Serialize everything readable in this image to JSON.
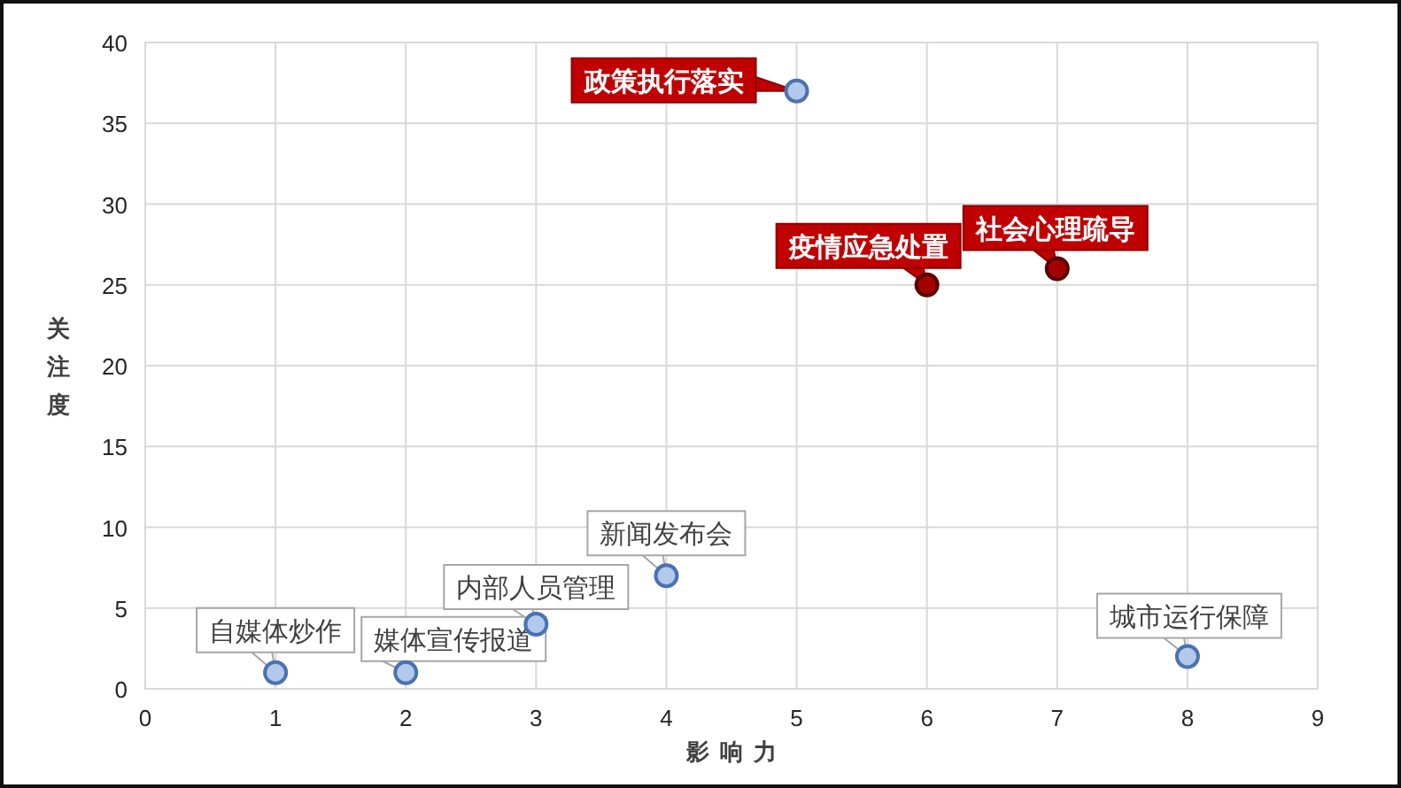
{
  "chart_data": {
    "type": "scatter",
    "xlabel": "影响力",
    "ylabel": "关注度",
    "xlim": [
      0,
      9
    ],
    "ylim": [
      0,
      40
    ],
    "xticks": [
      0,
      1,
      2,
      3,
      4,
      5,
      6,
      7,
      8,
      9
    ],
    "yticks": [
      0,
      5,
      10,
      15,
      20,
      25,
      30,
      35,
      40
    ],
    "grid": true,
    "marker": "circle",
    "series": [
      {
        "x": [
          1,
          2,
          3,
          4,
          8
        ],
        "values": [
          1,
          1,
          4,
          7,
          2
        ],
        "color": "#b3c9ec"
      },
      {
        "x": [
          5,
          6,
          7
        ],
        "values": [
          37,
          25,
          26
        ],
        "colors": [
          "#b3c9ec",
          "#a50000",
          "#a50000"
        ]
      }
    ],
    "annotations": [
      {
        "text": "自媒体炒作",
        "x": 1,
        "y": 1
      },
      {
        "text": "媒体宣传报道",
        "x": 2,
        "y": 1
      },
      {
        "text": "内部人员管理",
        "x": 3,
        "y": 4
      },
      {
        "text": "新闻发布会",
        "x": 4,
        "y": 7
      },
      {
        "text": "政策执行落实",
        "x": 5,
        "y": 37
      },
      {
        "text": "疫情应急处置",
        "x": 6,
        "y": 25
      },
      {
        "text": "社会心理疏导",
        "x": 7,
        "y": 26
      },
      {
        "text": "城市运行保障",
        "x": 8,
        "y": 2
      }
    ]
  }
}
